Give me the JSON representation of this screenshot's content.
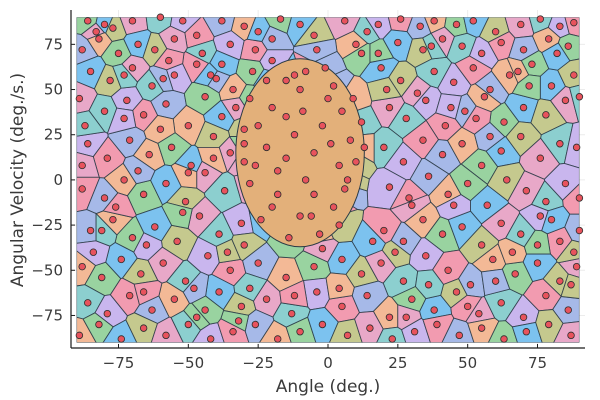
{
  "chart_data": {
    "type": "scatter",
    "title": "",
    "xlabel": "Angle (deg.)",
    "ylabel": "Angular Velocity (deg./s.)",
    "xlim": [
      -92,
      92
    ],
    "ylim": [
      -93,
      94
    ],
    "x_ticks": [
      -75,
      -50,
      -25,
      0,
      25,
      50,
      75
    ],
    "y_ticks": [
      -75,
      -50,
      -25,
      0,
      25,
      50,
      75
    ],
    "x_tick_labels": [
      "−75",
      "−50",
      "−25",
      "0",
      "25",
      "50",
      "75"
    ],
    "y_tick_labels": [
      "−75",
      "−50",
      "−25",
      "0",
      "25",
      "50",
      "75"
    ],
    "grid": true,
    "legend": "none",
    "plot_region": {
      "x": [
        -90,
        90
      ],
      "y": [
        -90,
        90
      ]
    },
    "central_cell": {
      "x_center": -10,
      "y_center": 15,
      "x_radius": 23,
      "y_radius": 52,
      "color": "#e3b07a"
    },
    "cell_palette": [
      "#f29bb0",
      "#7cc2ef",
      "#c9b6ee",
      "#99d3a0",
      "#8ccfcf",
      "#f3b996",
      "#e8a8c8",
      "#a6b9e8",
      "#c5c98e"
    ],
    "marker_color": "#e8535d",
    "marker_edge_color": "#2e2e2e",
    "edge_color": "#2a3a45",
    "series": [
      {
        "points": [
          [
            -86,
            88
          ],
          [
            -80,
            86
          ],
          [
            -77,
            84
          ],
          [
            -70,
            88
          ],
          [
            -60,
            90
          ],
          [
            -52,
            88
          ],
          [
            -47,
            80
          ],
          [
            -38,
            88
          ],
          [
            -30,
            85
          ],
          [
            -17,
            89
          ],
          [
            -10,
            86
          ],
          [
            -5,
            80
          ],
          [
            6,
            88
          ],
          [
            14,
            82
          ],
          [
            18,
            86
          ],
          [
            26,
            89
          ],
          [
            33,
            85
          ],
          [
            38,
            88
          ],
          [
            46,
            86
          ],
          [
            52,
            88
          ],
          [
            60,
            82
          ],
          [
            69,
            86
          ],
          [
            76,
            89
          ],
          [
            83,
            85
          ],
          [
            88,
            87
          ],
          [
            -88,
            72
          ],
          [
            -82,
            78
          ],
          [
            -75,
            70
          ],
          [
            -68,
            75
          ],
          [
            -62,
            72
          ],
          [
            -55,
            78
          ],
          [
            -45,
            70
          ],
          [
            -35,
            75
          ],
          [
            -26,
            72
          ],
          [
            -20,
            78
          ],
          [
            10,
            75
          ],
          [
            18,
            70
          ],
          [
            25,
            76
          ],
          [
            34,
            72
          ],
          [
            41,
            78
          ],
          [
            48,
            74
          ],
          [
            55,
            70
          ],
          [
            62,
            76
          ],
          [
            70,
            72
          ],
          [
            79,
            78
          ],
          [
            86,
            74
          ],
          [
            -85,
            60
          ],
          [
            -78,
            55
          ],
          [
            -70,
            62
          ],
          [
            -63,
            52
          ],
          [
            -55,
            58
          ],
          [
            -47,
            64
          ],
          [
            -40,
            56
          ],
          [
            -34,
            50
          ],
          [
            -27,
            60
          ],
          [
            19,
            62
          ],
          [
            26,
            55
          ],
          [
            32,
            48
          ],
          [
            38,
            60
          ],
          [
            45,
            54
          ],
          [
            52,
            62
          ],
          [
            58,
            50
          ],
          [
            65,
            58
          ],
          [
            73,
            64
          ],
          [
            80,
            52
          ],
          [
            88,
            58
          ],
          [
            -89,
            45
          ],
          [
            -80,
            38
          ],
          [
            -72,
            44
          ],
          [
            -66,
            36
          ],
          [
            -58,
            42
          ],
          [
            -50,
            30
          ],
          [
            -44,
            46
          ],
          [
            -38,
            35
          ],
          [
            -30,
            28
          ],
          [
            22,
            40
          ],
          [
            28,
            34
          ],
          [
            35,
            44
          ],
          [
            42,
            30
          ],
          [
            49,
            38
          ],
          [
            56,
            46
          ],
          [
            63,
            32
          ],
          [
            70,
            40
          ],
          [
            78,
            36
          ],
          [
            85,
            44
          ],
          [
            90,
            46
          ],
          [
            -86,
            20
          ],
          [
            -79,
            12
          ],
          [
            -71,
            22
          ],
          [
            -64,
            14
          ],
          [
            -56,
            18
          ],
          [
            -49,
            8
          ],
          [
            -41,
            24
          ],
          [
            -35,
            15
          ],
          [
            20,
            18
          ],
          [
            27,
            10
          ],
          [
            34,
            22
          ],
          [
            41,
            14
          ],
          [
            48,
            20
          ],
          [
            55,
            8
          ],
          [
            62,
            16
          ],
          [
            69,
            24
          ],
          [
            76,
            12
          ],
          [
            83,
            20
          ],
          [
            89,
            18
          ],
          [
            -88,
            -5
          ],
          [
            -80,
            -10
          ],
          [
            -73,
            0
          ],
          [
            -66,
            -8
          ],
          [
            -58,
            -2
          ],
          [
            -51,
            -12
          ],
          [
            -44,
            4
          ],
          [
            -37,
            -6
          ],
          [
            22,
            -4
          ],
          [
            29,
            -10
          ],
          [
            36,
            2
          ],
          [
            43,
            -8
          ],
          [
            50,
            -2
          ],
          [
            57,
            -14
          ],
          [
            64,
            0
          ],
          [
            71,
            -6
          ],
          [
            78,
            -12
          ],
          [
            85,
            -2
          ],
          [
            90,
            -10
          ],
          [
            -85,
            -28
          ],
          [
            -77,
            -22
          ],
          [
            -70,
            -32
          ],
          [
            -62,
            -26
          ],
          [
            -54,
            -34
          ],
          [
            -46,
            -20
          ],
          [
            -39,
            -30
          ],
          [
            -31,
            -24
          ],
          [
            20,
            -28
          ],
          [
            27,
            -34
          ],
          [
            34,
            -22
          ],
          [
            41,
            -30
          ],
          [
            48,
            -26
          ],
          [
            55,
            -36
          ],
          [
            62,
            -24
          ],
          [
            69,
            -30
          ],
          [
            76,
            -20
          ],
          [
            83,
            -34
          ],
          [
            90,
            -28
          ],
          [
            -88,
            -48
          ],
          [
            -81,
            -54
          ],
          [
            -74,
            -44
          ],
          [
            -67,
            -52
          ],
          [
            -59,
            -46
          ],
          [
            -51,
            -56
          ],
          [
            -43,
            -42
          ],
          [
            -35,
            -50
          ],
          [
            -25,
            -46
          ],
          [
            -15,
            -54
          ],
          [
            -5,
            -48
          ],
          [
            5,
            -44
          ],
          [
            12,
            -52
          ],
          [
            19,
            -46
          ],
          [
            27,
            -56
          ],
          [
            35,
            -42
          ],
          [
            43,
            -50
          ],
          [
            51,
            -58
          ],
          [
            59,
            -44
          ],
          [
            67,
            -52
          ],
          [
            75,
            -46
          ],
          [
            83,
            -56
          ],
          [
            89,
            -48
          ],
          [
            -86,
            -68
          ],
          [
            -79,
            -74
          ],
          [
            -71,
            -64
          ],
          [
            -63,
            -72
          ],
          [
            -55,
            -66
          ],
          [
            -47,
            -76
          ],
          [
            -39,
            -62
          ],
          [
            -31,
            -70
          ],
          [
            -22,
            -66
          ],
          [
            -13,
            -74
          ],
          [
            -4,
            -62
          ],
          [
            5,
            -70
          ],
          [
            14,
            -64
          ],
          [
            22,
            -76
          ],
          [
            30,
            -66
          ],
          [
            38,
            -72
          ],
          [
            46,
            -62
          ],
          [
            54,
            -74
          ],
          [
            62,
            -68
          ],
          [
            70,
            -76
          ],
          [
            78,
            -64
          ],
          [
            86,
            -72
          ],
          [
            -89,
            -86
          ],
          [
            -82,
            -80
          ],
          [
            -74,
            -88
          ],
          [
            -66,
            -82
          ],
          [
            -58,
            -86
          ],
          [
            -50,
            -80
          ],
          [
            -42,
            -88
          ],
          [
            -34,
            -84
          ],
          [
            -26,
            -80
          ],
          [
            -18,
            -88
          ],
          [
            -10,
            -84
          ],
          [
            -2,
            -80
          ],
          [
            7,
            -86
          ],
          [
            15,
            -82
          ],
          [
            23,
            -88
          ],
          [
            31,
            -84
          ],
          [
            39,
            -80
          ],
          [
            47,
            -86
          ],
          [
            55,
            -82
          ],
          [
            63,
            -88
          ],
          [
            71,
            -84
          ],
          [
            79,
            -80
          ],
          [
            87,
            -86
          ],
          [
            -20,
            40
          ],
          [
            -15,
            55
          ],
          [
            -8,
            60
          ],
          [
            2,
            52
          ],
          [
            5,
            38
          ],
          [
            -2,
            30
          ],
          [
            -12,
            25
          ],
          [
            -22,
            18
          ],
          [
            -18,
            5
          ],
          [
            -8,
            0
          ],
          [
            4,
            8
          ],
          [
            8,
            22
          ],
          [
            -5,
            15
          ],
          [
            -15,
            35
          ],
          [
            0,
            45
          ],
          [
            -25,
            30
          ],
          [
            10,
            10
          ],
          [
            -28,
            -2
          ],
          [
            -20,
            -15
          ],
          [
            -10,
            -20
          ],
          [
            2,
            -15
          ],
          [
            6,
            -5
          ],
          [
            -3,
            -30
          ],
          [
            -14,
            -32
          ],
          [
            -24,
            -22
          ],
          [
            -5,
            -8
          ],
          [
            -30,
            10
          ],
          [
            12,
            32
          ],
          [
            -10,
            50
          ],
          [
            -18,
            -8
          ],
          [
            -1,
            62
          ],
          [
            9,
            45
          ],
          [
            -28,
            45
          ],
          [
            -22,
            55
          ],
          [
            4,
            -25
          ],
          [
            -15,
            12
          ],
          [
            1,
            20
          ],
          [
            -9,
            38
          ],
          [
            -26,
            8
          ],
          [
            -6,
            -20
          ],
          [
            13,
            18
          ],
          [
            -30,
            20
          ],
          [
            -12,
            58
          ],
          [
            7,
            0
          ],
          [
            -2,
            -38
          ],
          [
            -87,
            30
          ],
          [
            -84,
            -40
          ],
          [
            -76,
            -15
          ],
          [
            -68,
            5
          ],
          [
            -60,
            28
          ],
          [
            -52,
            -18
          ],
          [
            -42,
            58
          ],
          [
            -36,
            -40
          ],
          [
            -33,
            40
          ],
          [
            -28,
            -60
          ],
          [
            -20,
            66
          ],
          [
            -12,
            -64
          ],
          [
            -4,
            72
          ],
          [
            4,
            -60
          ],
          [
            12,
            70
          ],
          [
            16,
            -34
          ],
          [
            24,
            -40
          ],
          [
            30,
            -14
          ],
          [
            36,
            -58
          ],
          [
            44,
            40
          ],
          [
            50,
            -70
          ],
          [
            58,
            24
          ],
          [
            66,
            -40
          ],
          [
            72,
            52
          ],
          [
            80,
            -22
          ],
          [
            87,
            -58
          ],
          [
            -83,
            82
          ],
          [
            -73,
            58
          ],
          [
            -65,
            -36
          ],
          [
            -57,
            66
          ],
          [
            -48,
            -60
          ],
          [
            -41,
            12
          ],
          [
            -32,
            -78
          ],
          [
            -25,
            82
          ],
          [
            21,
            50
          ],
          [
            28,
            -76
          ],
          [
            37,
            74
          ],
          [
            45,
            -14
          ],
          [
            53,
            34
          ],
          [
            60,
            -56
          ],
          [
            68,
            60
          ],
          [
            75,
            -36
          ],
          [
            82,
            70
          ],
          [
            88,
            -40
          ],
          [
            -88,
            8
          ],
          [
            -81,
            -28
          ],
          [
            -73,
            34
          ],
          [
            -66,
            -62
          ],
          [
            -59,
            56
          ],
          [
            -50,
            4
          ],
          [
            -44,
            -72
          ],
          [
            -38,
            64
          ],
          [
            -30,
            -36
          ]
        ]
      }
    ]
  }
}
